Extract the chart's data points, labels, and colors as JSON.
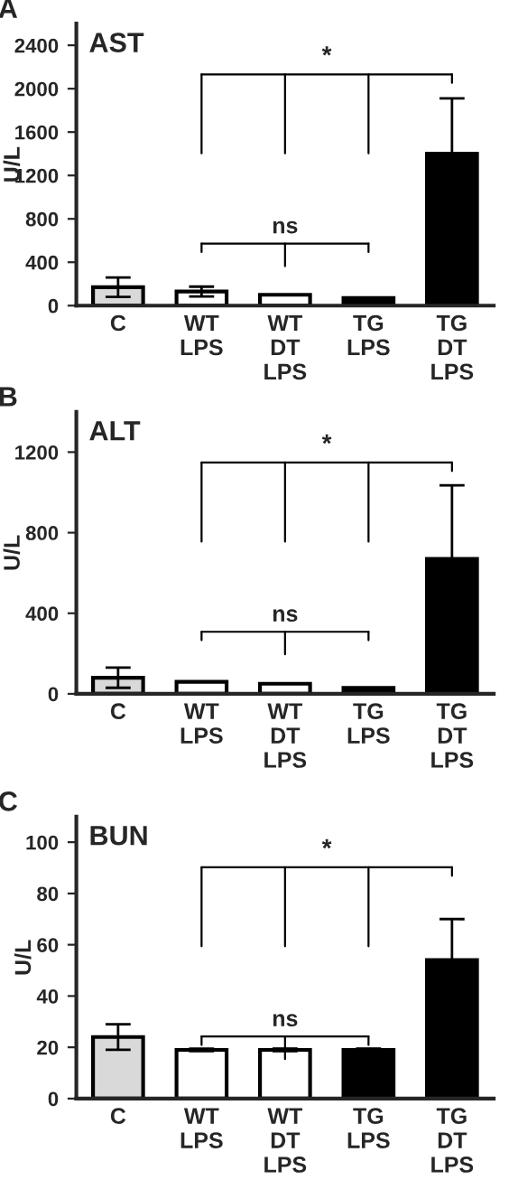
{
  "chart_data": [
    {
      "type": "bar",
      "title": "AST",
      "ylabel": "U/L",
      "categories": [
        "C",
        "WT\nLPS",
        "WT\nDT\nLPS",
        "TG\nLPS",
        "TG\nDT\nLPS"
      ],
      "values": [
        170,
        130,
        100,
        70,
        1400
      ],
      "errors": [
        90,
        45,
        null,
        null,
        510
      ],
      "colors": [
        "#d9d9d9",
        "#ffffff",
        "#ffffff",
        "#000000",
        "#000000"
      ],
      "ylim": [
        0,
        2600
      ],
      "yticks": [
        0,
        400,
        800,
        1200,
        1600,
        2000,
        2400
      ],
      "grid": false,
      "annotations": [
        "A",
        "*",
        "ns"
      ]
    },
    {
      "type": "bar",
      "title": "ALT",
      "ylabel": "U/L",
      "categories": [
        "C",
        "WT\nLPS",
        "WT\nDT\nLPS",
        "TG\nLPS",
        "TG\nDT\nLPS"
      ],
      "values": [
        80,
        60,
        50,
        30,
        670
      ],
      "errors": [
        50,
        null,
        null,
        null,
        365
      ],
      "colors": [
        "#d9d9d9",
        "#ffffff",
        "#ffffff",
        "#000000",
        "#000000"
      ],
      "ylim": [
        0,
        1400
      ],
      "yticks": [
        0,
        400,
        800,
        1200
      ],
      "grid": false,
      "annotations": [
        "B",
        "*",
        "ns"
      ]
    },
    {
      "type": "bar",
      "title": "BUN",
      "ylabel": "U/L",
      "categories": [
        "C",
        "WT\nLPS",
        "WT\nDT\nLPS",
        "TG\nLPS",
        "TG\nDT\nLPS"
      ],
      "values": [
        24,
        19,
        19,
        19,
        54
      ],
      "errors": [
        5,
        0.5,
        0.5,
        0.5,
        16
      ],
      "colors": [
        "#d9d9d9",
        "#ffffff",
        "#ffffff",
        "#000000",
        "#000000"
      ],
      "ylim": [
        0,
        110
      ],
      "yticks": [
        0,
        20,
        40,
        60,
        80,
        100
      ],
      "grid": false,
      "annotations": [
        "C",
        "*",
        "ns"
      ]
    }
  ]
}
